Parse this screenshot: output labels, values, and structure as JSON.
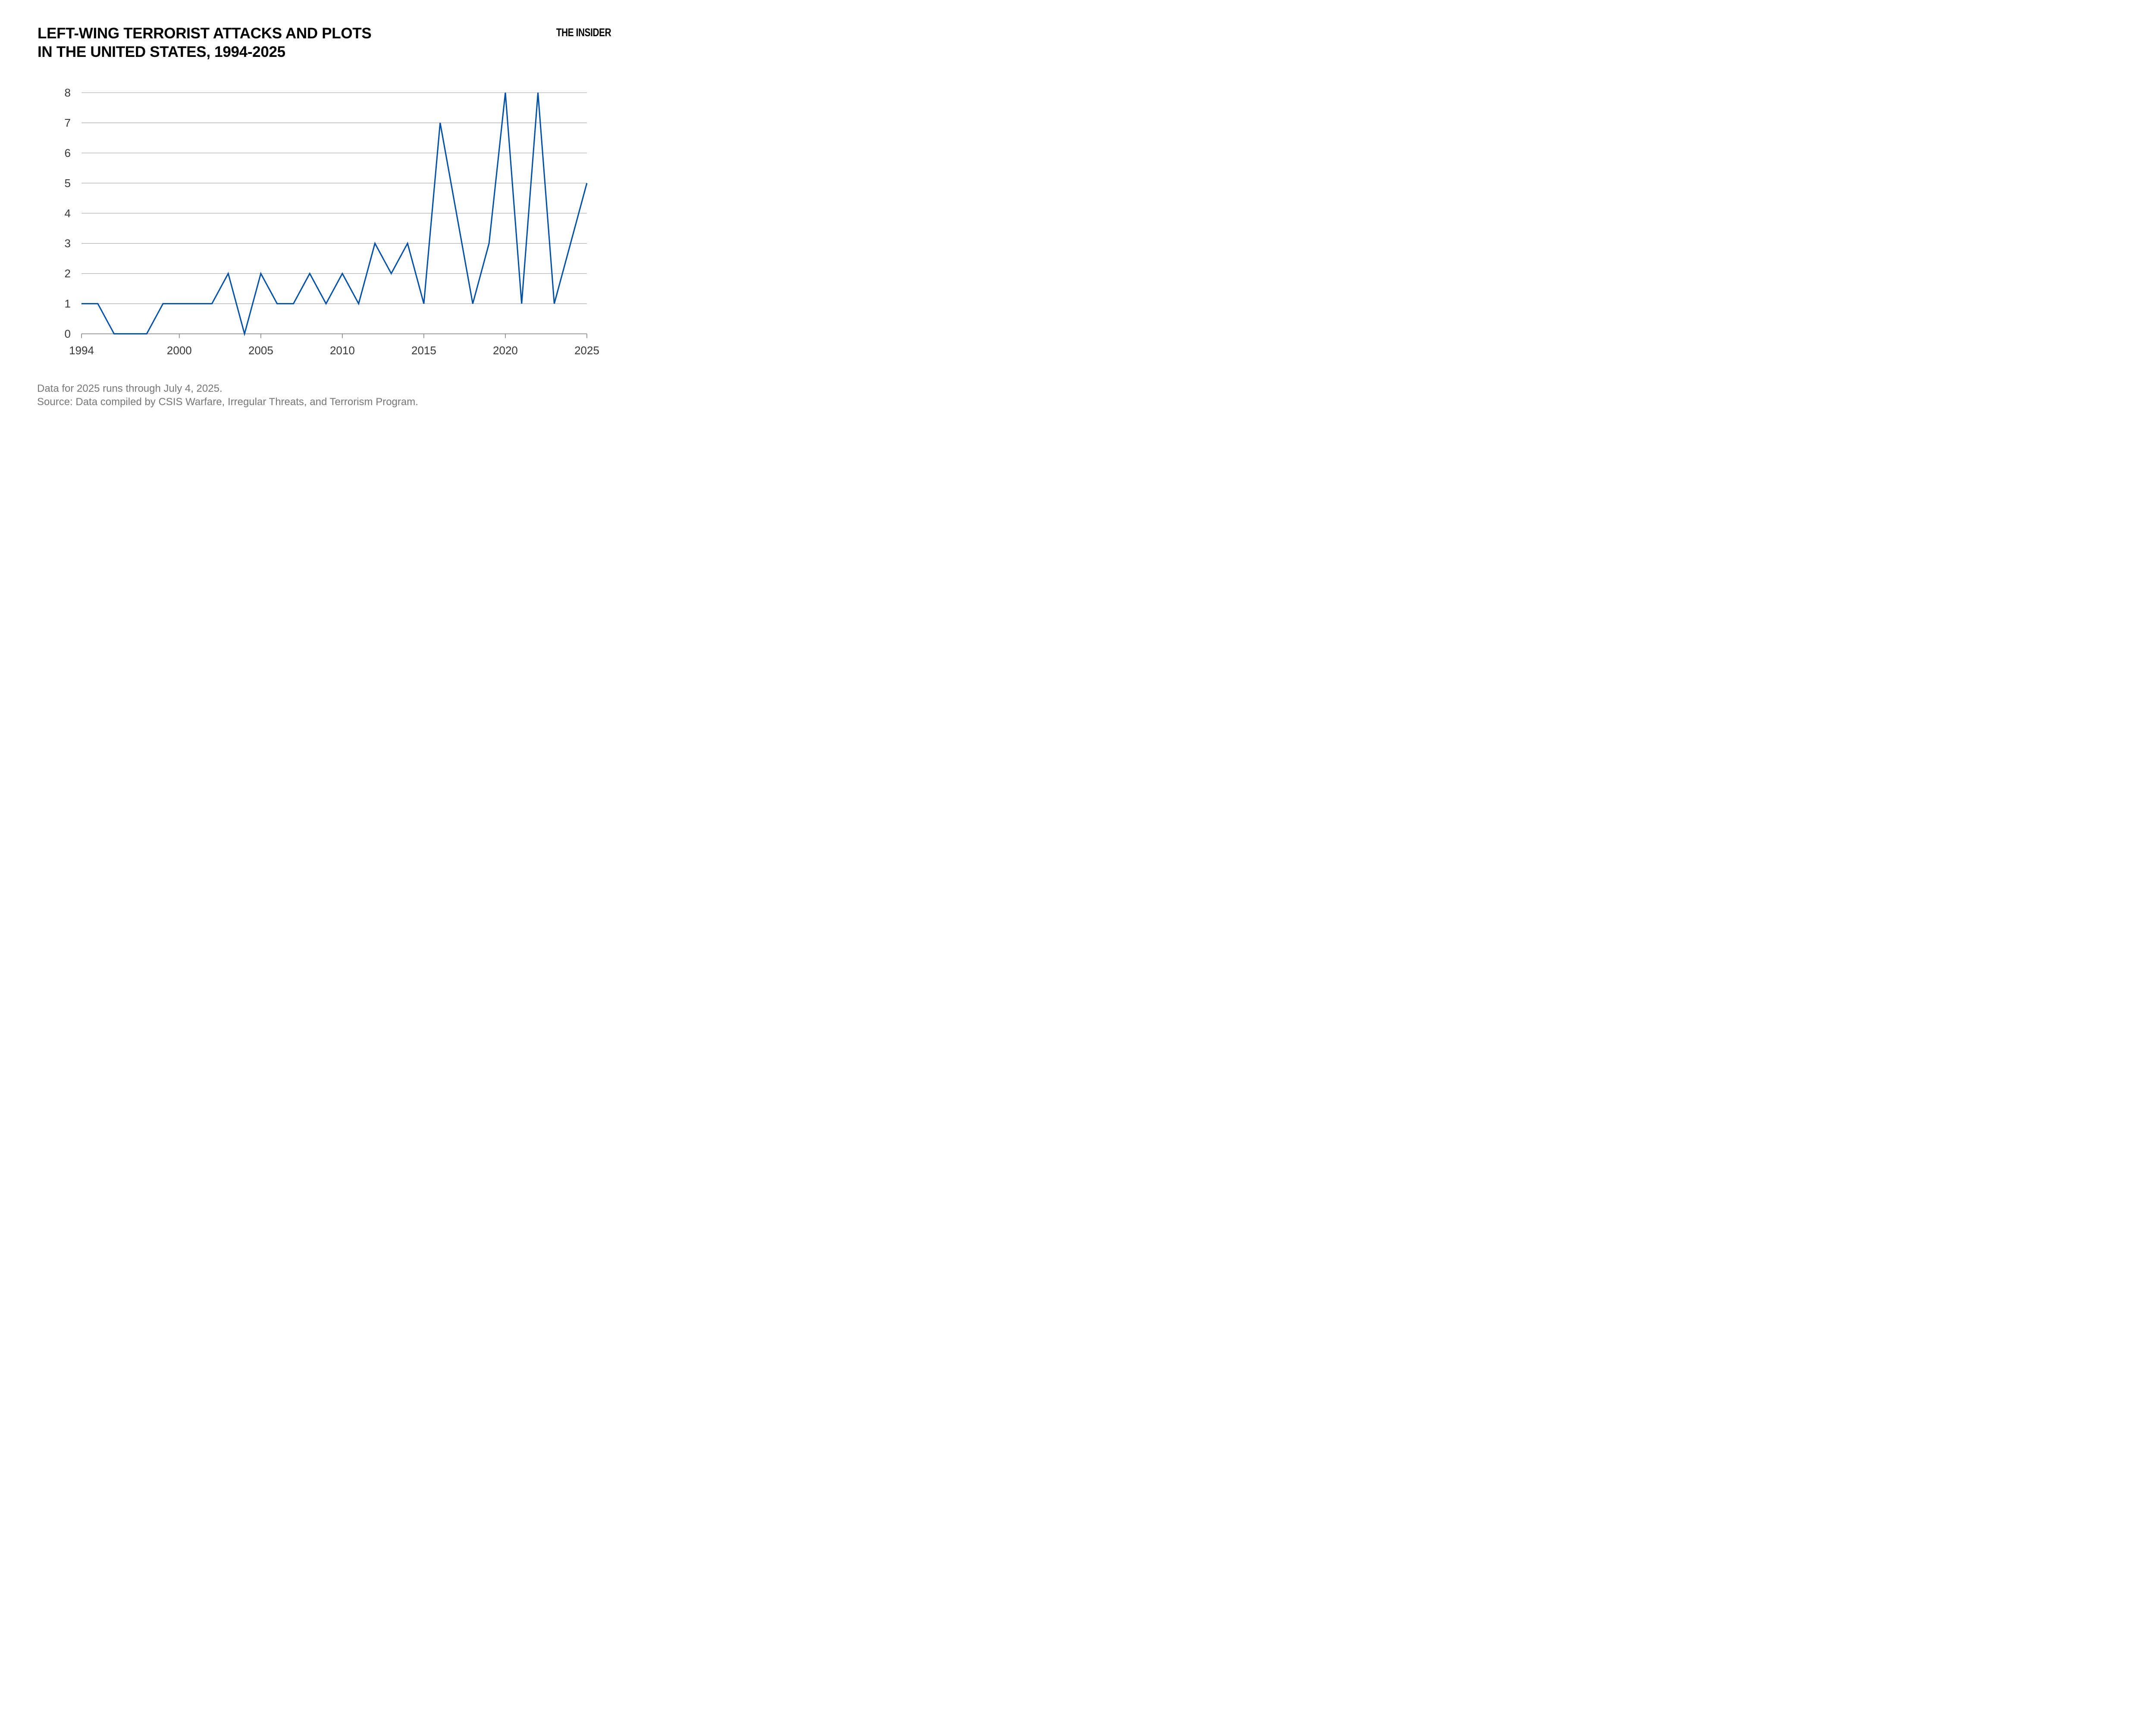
{
  "header": {
    "title_line1": "LEFT-WING TERRORIST ATTACKS AND PLOTS",
    "title_line2": "IN THE UNITED STATES, 1994-2025",
    "logo": "THE INSIDER"
  },
  "chart_data": {
    "type": "line",
    "title": "Left-wing terrorist attacks and plots in the United States, 1994-2025",
    "x": [
      1994,
      1995,
      1996,
      1997,
      1998,
      1999,
      2000,
      2001,
      2002,
      2003,
      2004,
      2005,
      2006,
      2007,
      2008,
      2009,
      2010,
      2011,
      2012,
      2013,
      2014,
      2015,
      2016,
      2017,
      2018,
      2019,
      2020,
      2021,
      2022,
      2023,
      2024,
      2025
    ],
    "values": [
      1,
      1,
      0,
      0,
      0,
      1,
      1,
      1,
      1,
      2,
      0,
      2,
      1,
      1,
      2,
      1,
      2,
      1,
      3,
      2,
      3,
      1,
      7,
      4,
      1,
      3,
      8,
      1,
      8,
      1,
      3,
      5
    ],
    "xlim": [
      1994,
      2025
    ],
    "ylim": [
      0,
      8
    ],
    "x_ticks": [
      1994,
      2000,
      2005,
      2010,
      2015,
      2020,
      2025
    ],
    "x_tick_labels": [
      "1994",
      "2000",
      "2005",
      "2010",
      "2015",
      "2020",
      "2025"
    ],
    "y_ticks": [
      0,
      1,
      2,
      3,
      4,
      5,
      6,
      7,
      8
    ],
    "y_tick_labels": [
      "0",
      "1",
      "2",
      "3",
      "4",
      "5",
      "6",
      "7",
      "8"
    ],
    "grid": "horizontal-only",
    "legend": "none",
    "colors": {
      "line": "#0050A5",
      "axis": "#999999",
      "gridline": "#B0B0B0",
      "tick_label": "#383838",
      "footer_text": "#777777"
    }
  },
  "footer": {
    "note": "Data for 2025 runs through July 4, 2025.",
    "source": "Source: Data compiled by CSIS Warfare, Irregular Threats, and Terrorism Program."
  }
}
